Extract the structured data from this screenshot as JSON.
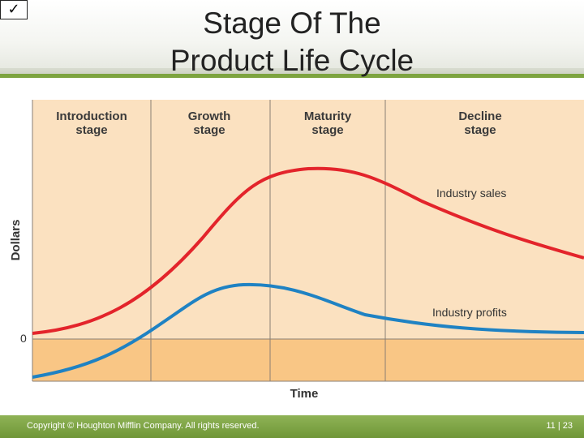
{
  "slide": {
    "checkbox_glyph": "✓",
    "title_line1": "Stage Of The",
    "title_line2": "Product Life Cycle",
    "footer_copyright": "Copyright © Houghton Mifflin Company. All rights reserved.",
    "footer_page": "11 | 23"
  },
  "diagram": {
    "stages": [
      {
        "line1": "Introduction",
        "line2": "stage"
      },
      {
        "line1": "Growth",
        "line2": "stage"
      },
      {
        "line1": "Maturity",
        "line2": "stage"
      },
      {
        "line1": "Decline",
        "line2": "stage"
      }
    ],
    "y_axis_label": "Dollars",
    "x_axis_label": "Time",
    "zero_label": "0",
    "curves": {
      "sales_label": "Industry sales",
      "profits_label": "Industry profits"
    },
    "colors": {
      "background": "#fbe1c0",
      "below_zero": "#f9c685",
      "sales": "#e3242b",
      "profits": "#1f82c3",
      "divider": "#8a7f74",
      "accent": "#7da43f"
    }
  }
}
